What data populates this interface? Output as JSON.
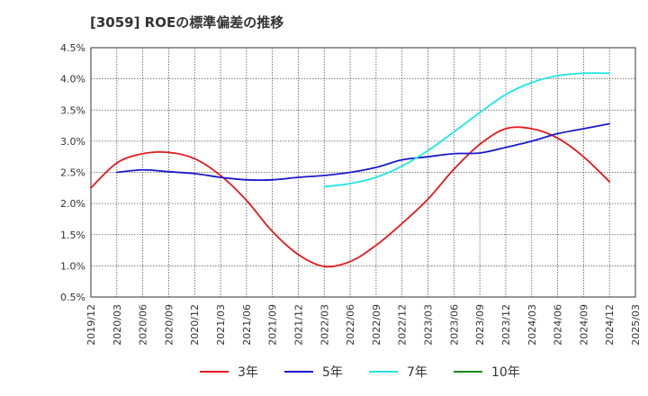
{
  "chart_data": {
    "type": "line",
    "title": "[3059]  ROEの標準偏差の推移",
    "xlabel": "",
    "ylabel": "",
    "ylim": [
      0.5,
      4.5
    ],
    "yticks": [
      0.5,
      1.0,
      1.5,
      2.0,
      2.5,
      3.0,
      3.5,
      4.0,
      4.5
    ],
    "ytick_labels": [
      "0.5%",
      "1.0%",
      "1.5%",
      "2.0%",
      "2.5%",
      "3.0%",
      "3.5%",
      "4.0%",
      "4.5%"
    ],
    "categories": [
      "2019/12",
      "2020/03",
      "2020/06",
      "2020/09",
      "2020/12",
      "2021/03",
      "2021/06",
      "2021/09",
      "2021/12",
      "2022/03",
      "2022/06",
      "2022/09",
      "2022/12",
      "2023/03",
      "2023/06",
      "2023/09",
      "2023/12",
      "2024/03",
      "2024/06",
      "2024/09",
      "2024/12",
      "2025/03"
    ],
    "grid": true,
    "legend_position": "bottom",
    "series": [
      {
        "name": "3年",
        "color": "#e31a1c",
        "values": [
          2.25,
          2.65,
          2.8,
          2.82,
          2.72,
          2.45,
          2.05,
          1.55,
          1.18,
          0.99,
          1.07,
          1.33,
          1.68,
          2.07,
          2.55,
          2.95,
          3.2,
          3.2,
          3.05,
          2.75,
          2.35,
          null
        ]
      },
      {
        "name": "5年",
        "color": "#1a1acc",
        "values": [
          null,
          2.5,
          2.54,
          2.51,
          2.48,
          2.42,
          2.38,
          2.38,
          2.42,
          2.45,
          2.5,
          2.58,
          2.7,
          2.75,
          2.8,
          2.81,
          2.9,
          3.0,
          3.12,
          3.2,
          3.28,
          null
        ]
      },
      {
        "name": "7年",
        "color": "#22e5e5",
        "values": [
          null,
          null,
          null,
          null,
          null,
          null,
          null,
          null,
          null,
          2.27,
          2.32,
          2.42,
          2.6,
          2.85,
          3.15,
          3.46,
          3.75,
          3.94,
          4.05,
          4.09,
          4.09,
          null
        ]
      },
      {
        "name": "10年",
        "color": "#1a8a1a",
        "values": [
          null,
          null,
          null,
          null,
          null,
          null,
          null,
          null,
          null,
          null,
          null,
          null,
          null,
          null,
          null,
          null,
          null,
          null,
          null,
          null,
          null,
          null
        ]
      }
    ]
  }
}
